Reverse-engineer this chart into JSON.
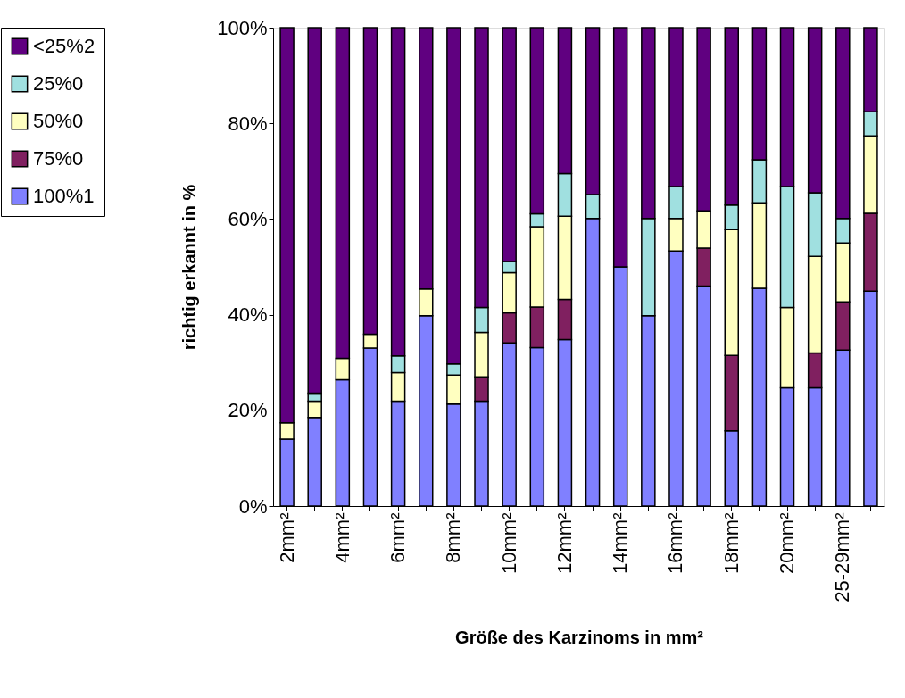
{
  "chart_data": {
    "type": "bar",
    "stacked": true,
    "xlabel": "Größe des Karzinoms in mm²",
    "ylabel": "richtig erkannt in %",
    "categories": [
      "2mm²",
      null,
      "4mm²",
      null,
      "6mm²",
      null,
      "8mm²",
      null,
      "10mm²",
      null,
      "12mm²",
      null,
      "14mm²",
      null,
      "16mm²",
      null,
      "18mm²",
      null,
      "20mm²",
      null,
      "25-29mm²",
      null
    ],
    "series": [
      {
        "name": "100%1",
        "color": "#8080ff",
        "values": [
          14,
          18.5,
          26.4,
          33,
          21.9,
          39.8,
          21.3,
          21.9,
          34.1,
          33.1,
          34.8,
          60.1,
          50,
          39.8,
          53.3,
          46,
          15.7,
          45.5,
          24.7,
          24.7,
          32.6,
          44.9
        ]
      },
      {
        "name": "75%0",
        "color": "#802060",
        "values": [
          null,
          null,
          null,
          null,
          null,
          null,
          null,
          5.1,
          6.3,
          8.5,
          8.4,
          null,
          null,
          null,
          null,
          7.9,
          15.8,
          null,
          null,
          7.3,
          10.1,
          16.3
        ]
      },
      {
        "name": "50%0",
        "color": "#ffffc0",
        "values": [
          3.4,
          3.4,
          4.5,
          2.9,
          6,
          5.6,
          6.1,
          9.3,
          8.4,
          16.8,
          17.4,
          null,
          null,
          null,
          6.8,
          7.8,
          26.3,
          17.9,
          16.8,
          20.2,
          12.3,
          16.2
        ]
      },
      {
        "name": "25%0",
        "color": "#a0e0e0",
        "values": [
          null,
          1.7,
          null,
          null,
          3.5,
          null,
          2.3,
          5.2,
          2.3,
          2.7,
          8.9,
          5,
          null,
          20.3,
          6.7,
          null,
          5.1,
          9,
          25.3,
          13.3,
          5.1,
          5
        ]
      },
      {
        "name": "<25%2",
        "color": "#600080",
        "values": [
          82.6,
          76.4,
          69.1,
          64.1,
          68.6,
          54.6,
          70.3,
          58.5,
          48.9,
          38.9,
          30.5,
          34.9,
          50,
          39.9,
          33.2,
          38.3,
          37.1,
          27.6,
          33.2,
          34.5,
          39.9,
          17.6
        ]
      }
    ],
    "ylim": [
      0,
      100
    ],
    "yticks": [
      {
        "value": 0,
        "label": "0%"
      },
      {
        "value": 20,
        "label": "20%"
      },
      {
        "value": 40,
        "label": "40%"
      },
      {
        "value": 60,
        "label": "60%"
      },
      {
        "value": 80,
        "label": "80%"
      },
      {
        "value": 100,
        "label": "100%"
      }
    ],
    "grid": false,
    "legend": "left"
  }
}
